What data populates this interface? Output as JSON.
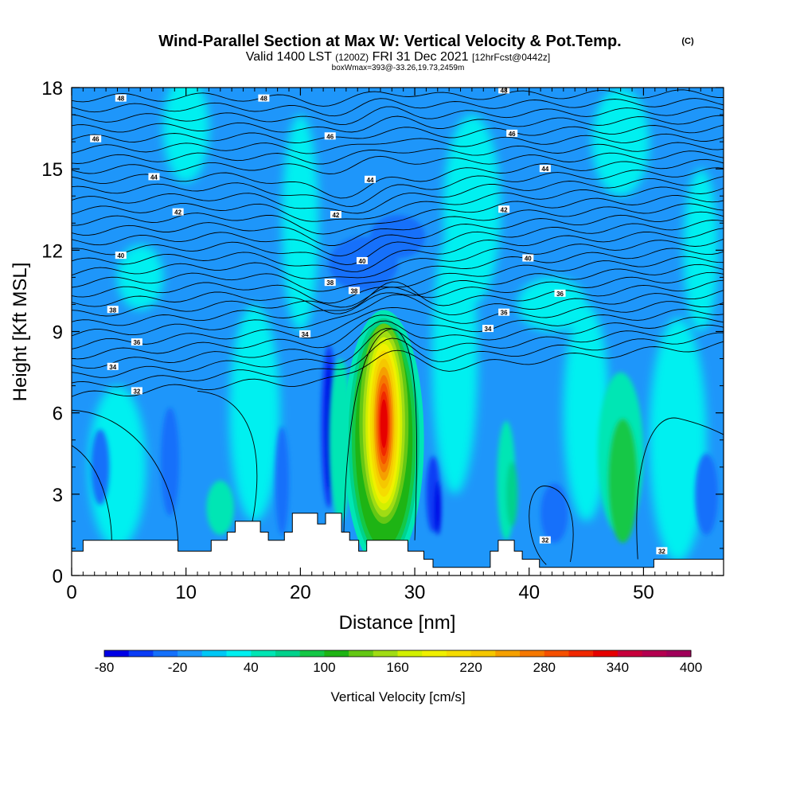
{
  "header": {
    "title": "Wind-Parallel Section at Max W: Vertical Velocity & Pot.Temp.",
    "copyright": "(C)",
    "valid_main": "Valid 1400 LST",
    "valid_utc": "(1200Z)",
    "valid_date": "FRI 31 Dec 2021",
    "forecast": "[12hrFcst@0442z]",
    "box_info": "boxWmax=393@-33.26,19.73,2459m"
  },
  "chart_data": {
    "type": "heatmap",
    "title": "Wind-Parallel Section at Max W: Vertical Velocity & Pot.Temp.",
    "xlabel": "Distance [nm]",
    "ylabel": "Height [Kft MSL]",
    "xlim": [
      0,
      57
    ],
    "ylim": [
      0,
      18
    ],
    "x_ticks": [
      0,
      10,
      20,
      30,
      40,
      50
    ],
    "y_ticks": [
      0,
      3,
      6,
      9,
      12,
      15,
      18
    ],
    "colorbar": {
      "label": "Vertical Velocity [cm/s]",
      "tick_labels": [
        -80,
        -20,
        40,
        100,
        160,
        220,
        280,
        340,
        400
      ],
      "levels": [
        -80,
        -60,
        -40,
        -20,
        0,
        20,
        40,
        60,
        80,
        100,
        120,
        140,
        160,
        180,
        200,
        220,
        240,
        260,
        280,
        300,
        320,
        340,
        360,
        380,
        400
      ],
      "colors": [
        "#0000e6",
        "#0a3cf5",
        "#1470fa",
        "#1e96fa",
        "#00c8f5",
        "#00f0f0",
        "#00e6b4",
        "#00d28c",
        "#14c846",
        "#1eb414",
        "#64c814",
        "#a0dc14",
        "#d2f000",
        "#f0f000",
        "#f5dc00",
        "#f5c800",
        "#f5a000",
        "#f57800",
        "#f55000",
        "#f02800",
        "#e60000",
        "#c8003c",
        "#b40050",
        "#a0005a"
      ]
    },
    "updraft_max": {
      "x": 27.3,
      "z": 5.8,
      "value": 393
    },
    "theta_labels": [
      {
        "text": "48",
        "x": 4.3,
        "z": 17.6
      },
      {
        "text": "48",
        "x": 16.8,
        "z": 17.6
      },
      {
        "text": "48",
        "x": 37.8,
        "z": 17.9
      },
      {
        "text": "46",
        "x": 2.1,
        "z": 16.1
      },
      {
        "text": "46",
        "x": 22.6,
        "z": 16.2
      },
      {
        "text": "46",
        "x": 38.5,
        "z": 16.3
      },
      {
        "text": "44",
        "x": 7.2,
        "z": 14.7
      },
      {
        "text": "44",
        "x": 26.1,
        "z": 14.6
      },
      {
        "text": "44",
        "x": 41.4,
        "z": 15.0
      },
      {
        "text": "42",
        "x": 9.3,
        "z": 13.4
      },
      {
        "text": "42",
        "x": 23.1,
        "z": 13.3
      },
      {
        "text": "42",
        "x": 37.8,
        "z": 13.5
      },
      {
        "text": "40",
        "x": 4.3,
        "z": 11.8
      },
      {
        "text": "40",
        "x": 25.4,
        "z": 11.6
      },
      {
        "text": "40",
        "x": 39.9,
        "z": 11.7
      },
      {
        "text": "38",
        "x": 22.6,
        "z": 10.8
      },
      {
        "text": "38",
        "x": 3.6,
        "z": 9.8
      },
      {
        "text": "38",
        "x": 24.7,
        "z": 10.5
      },
      {
        "text": "36",
        "x": 37.8,
        "z": 9.7
      },
      {
        "text": "36",
        "x": 42.7,
        "z": 10.4
      },
      {
        "text": "36",
        "x": 5.7,
        "z": 8.6
      },
      {
        "text": "34",
        "x": 20.4,
        "z": 8.9
      },
      {
        "text": "34",
        "x": 36.4,
        "z": 9.1
      },
      {
        "text": "34",
        "x": 3.6,
        "z": 7.7
      },
      {
        "text": "32",
        "x": 5.7,
        "z": 6.8
      },
      {
        "text": "32",
        "x": 41.4,
        "z": 1.3
      },
      {
        "text": "32",
        "x": 51.6,
        "z": 0.9
      }
    ],
    "terrain": [
      [
        0,
        0.9
      ],
      [
        1,
        0.9
      ],
      [
        1,
        1.3
      ],
      [
        9.3,
        1.3
      ],
      [
        9.3,
        0.9
      ],
      [
        12.2,
        0.9
      ],
      [
        12.2,
        1.3
      ],
      [
        13.6,
        1.3
      ],
      [
        13.6,
        1.6
      ],
      [
        14.3,
        1.6
      ],
      [
        14.3,
        2.0
      ],
      [
        16.5,
        2.0
      ],
      [
        16.5,
        1.6
      ],
      [
        17.2,
        1.6
      ],
      [
        17.2,
        1.3
      ],
      [
        18.6,
        1.3
      ],
      [
        18.6,
        1.6
      ],
      [
        19.3,
        1.6
      ],
      [
        19.3,
        2.3
      ],
      [
        21.5,
        2.3
      ],
      [
        21.5,
        1.9
      ],
      [
        22.2,
        1.9
      ],
      [
        22.2,
        2.3
      ],
      [
        23.6,
        2.3
      ],
      [
        23.6,
        1.6
      ],
      [
        24.3,
        1.6
      ],
      [
        24.3,
        1.3
      ],
      [
        25.1,
        1.3
      ],
      [
        25.1,
        0.9
      ],
      [
        25.8,
        0.9
      ],
      [
        25.8,
        1.3
      ],
      [
        29.4,
        1.3
      ],
      [
        29.4,
        0.9
      ],
      [
        30.8,
        0.9
      ],
      [
        30.8,
        0.6
      ],
      [
        31.6,
        0.6
      ],
      [
        31.6,
        0.3
      ],
      [
        36.6,
        0.3
      ],
      [
        36.6,
        0.9
      ],
      [
        37.3,
        0.9
      ],
      [
        37.3,
        1.3
      ],
      [
        38.7,
        1.3
      ],
      [
        38.7,
        0.9
      ],
      [
        39.4,
        0.9
      ],
      [
        39.4,
        0.6
      ],
      [
        40.9,
        0.6
      ],
      [
        40.9,
        0.3
      ],
      [
        43.0,
        0.3
      ],
      [
        43.0,
        0.3
      ],
      [
        50.9,
        0.3
      ],
      [
        50.9,
        0.6
      ],
      [
        57,
        0.6
      ]
    ]
  }
}
